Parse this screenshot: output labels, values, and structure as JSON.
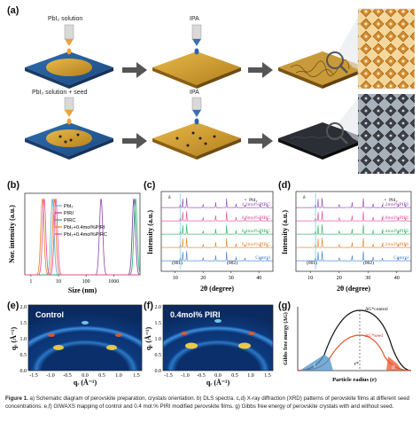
{
  "panels": {
    "a": "(a)",
    "b": "(b)",
    "c": "(c)",
    "d": "(d)",
    "e": "(e)",
    "f": "(f)",
    "g": "(g)"
  },
  "schematic": {
    "top_label_1": "PbI₂ solution",
    "top_label_2": "IPA",
    "bottom_label_1": "PbI₂ solution + seed",
    "bottom_label_2": "IPA"
  },
  "chart_b": {
    "type": "line",
    "xlabel": "Size (nm)",
    "ylabel": "Nor. intensity (a.u.)",
    "x_ticks": [
      "1",
      "10",
      "100",
      "1000"
    ],
    "xscale": "log",
    "legend": [
      "PbI₂",
      "PIRI",
      "PIRC",
      "PbI₂+0.4mol%PIRI",
      "PbI₂+0.4mol%PIRC"
    ],
    "colors": [
      "#5aa9d6",
      "#8e44ad",
      "#27ae60",
      "#e67e22",
      "#e84393"
    ]
  },
  "chart_c": {
    "type": "line",
    "xlabel": "2θ (degree)",
    "ylabel": "Intensity (a.u.)",
    "legend_marker": "•",
    "legend_text": "PbI₂",
    "peak_001": "(001)",
    "peak_002": "(002)",
    "delta": "δ",
    "x_ticks": [
      "10",
      "20",
      "30",
      "40"
    ],
    "series": [
      "1.2mol%PIRC",
      "0.8mol%PIRC",
      "0.4mol%PIRC",
      "0.2mol%PIRC",
      "Control"
    ],
    "colors": [
      "#8e44ad",
      "#e84393",
      "#27ae60",
      "#e67e22",
      "#3a7bd5"
    ]
  },
  "chart_d": {
    "type": "line",
    "xlabel": "2θ (degree)",
    "ylabel": "Intensity (a.u.)",
    "legend_marker": "•",
    "legend_text": "PbI₂",
    "peak_001": "(001)",
    "peak_002": "(002)",
    "delta": "δ",
    "x_ticks": [
      "10",
      "20",
      "30",
      "40"
    ],
    "series": [
      "1.2mol%PIRI",
      "0.8mol%PIRI",
      "0.4mol%PIRI",
      "0.2mol%PIRI",
      "Control"
    ],
    "colors": [
      "#8e44ad",
      "#e84393",
      "#27ae60",
      "#e67e22",
      "#3a7bd5"
    ]
  },
  "giwaxs_e": {
    "label": "Control",
    "ylabel": "qₑ (Å⁻¹)",
    "xlabel": "qᵣ (Å⁻¹)",
    "y_ticks": [
      "0.0",
      "0.5",
      "1.0",
      "1.5",
      "2.0"
    ],
    "x_ticks": [
      "-1.5",
      "-1.0",
      "-0.5",
      "0.0",
      "0.5",
      "1.0",
      "1.5"
    ]
  },
  "giwaxs_f": {
    "label": "0.4mol% PIRI",
    "ylabel": "qₑ (Å⁻¹)",
    "xlabel": "qᵣ (Å⁻¹)",
    "y_ticks": [
      "0.0",
      "0.5",
      "1.0",
      "1.5",
      "2.0"
    ],
    "x_ticks": [
      "-1.5",
      "-1.0",
      "-0.5",
      "0.0",
      "0.5",
      "1.0",
      "1.5"
    ]
  },
  "chart_g": {
    "ylabel": "Gibbs free energy (ΔG)",
    "xlabel": "Particle radius (r)",
    "label_control": "ΔG*control",
    "label_seed": "ΔG*seed",
    "label_r": "r*",
    "label_I": "I",
    "label_II": "II"
  },
  "caption": {
    "bold": "Figure 1.",
    "text": " a) Schematic diagram of perovskite preparation, crystals orientation. b) DLS spectra. c,d) X-ray diffraction (XRD) patterns of perovskite films at different seed concentrations. e,f) GIWAXS mapping of control and 0.4 mol.% PIRI modified perovskite films. g) Gibbs free energy of perovskite crystals with and without seed."
  }
}
